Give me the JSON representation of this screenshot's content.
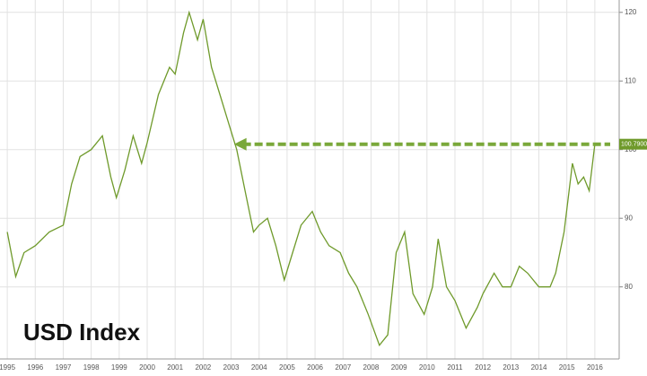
{
  "chart_data": {
    "type": "line",
    "title": "USD Index",
    "series": [
      {
        "name": "USD Index",
        "color": "#6f9a2b",
        "x": [
          1995.0,
          1995.3,
          1995.6,
          1996.0,
          1996.5,
          1997.0,
          1997.3,
          1997.6,
          1998.0,
          1998.4,
          1998.7,
          1998.9,
          1999.2,
          1999.5,
          1999.8,
          2000.0,
          2000.4,
          2000.8,
          2001.0,
          2001.3,
          2001.5,
          2001.8,
          2002.0,
          2002.3,
          2002.6,
          2002.9,
          2003.2,
          2003.5,
          2003.8,
          2004.0,
          2004.3,
          2004.6,
          2004.9,
          2005.2,
          2005.5,
          2005.9,
          2006.2,
          2006.5,
          2006.9,
          2007.2,
          2007.5,
          2007.9,
          2008.3,
          2008.6,
          2008.9,
          2009.2,
          2009.5,
          2009.9,
          2010.2,
          2010.4,
          2010.7,
          2011.0,
          2011.4,
          2011.8,
          2012.0,
          2012.4,
          2012.7,
          2013.0,
          2013.3,
          2013.6,
          2014.0,
          2014.4,
          2014.6,
          2014.9,
          2015.2,
          2015.4,
          2015.6,
          2015.8,
          2016.0
        ],
        "values": [
          88,
          81.5,
          85,
          86,
          88,
          89,
          95,
          99,
          100,
          102,
          96,
          93,
          97,
          102,
          98,
          101,
          108,
          112,
          111,
          117,
          120,
          116,
          119,
          112,
          108,
          104,
          100,
          94,
          88,
          89,
          90,
          86,
          81,
          85,
          89,
          91,
          88,
          86,
          85,
          82,
          80,
          76,
          71.5,
          73,
          85,
          88,
          79,
          76,
          80,
          87,
          80,
          78,
          74,
          77,
          79,
          82,
          80,
          80,
          83,
          82,
          80,
          80,
          82,
          88,
          98,
          95,
          96,
          94,
          100.8
        ]
      }
    ],
    "annotation": {
      "value": 100.79,
      "label": "100.7900",
      "arrow_from": 2003.1
    },
    "xlim": [
      1994.74,
      2016.87
    ],
    "ylim": [
      69.5,
      121.8
    ],
    "xticks": [
      1995,
      1996,
      1997,
      1998,
      1999,
      2000,
      2001,
      2002,
      2003,
      2004,
      2005,
      2006,
      2007,
      2008,
      2009,
      2010,
      2011,
      2012,
      2013,
      2014,
      2015,
      2016
    ],
    "yticks": [
      80,
      90,
      100,
      110,
      120
    ],
    "grid": true
  }
}
